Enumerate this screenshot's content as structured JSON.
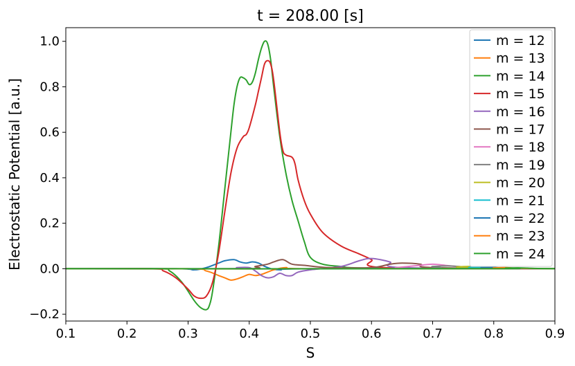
{
  "chart_data": {
    "type": "line",
    "title": "t = 208.00 [s]",
    "xlabel": "S",
    "ylabel": "Electrostatic Potential [a.u.]",
    "xlim": [
      0.1,
      0.9
    ],
    "ylim": [
      -0.23,
      1.06
    ],
    "xticks": [
      "0.1",
      "0.2",
      "0.3",
      "0.4",
      "0.5",
      "0.6",
      "0.7",
      "0.8",
      "0.9"
    ],
    "yticks": [
      "−0.2",
      "0.0",
      "0.2",
      "0.4",
      "0.6",
      "0.8",
      "1.0"
    ],
    "grid": false,
    "legend_position": "top-right",
    "series": [
      {
        "name": "m = 12",
        "color": "#1f77b4",
        "x": [
          0.1,
          0.28,
          0.31,
          0.33,
          0.35,
          0.36,
          0.375,
          0.385,
          0.395,
          0.405,
          0.415,
          0.43,
          0.45,
          0.5,
          0.9
        ],
        "y": [
          0,
          0,
          -0.005,
          0.005,
          0.025,
          0.035,
          0.04,
          0.03,
          0.025,
          0.03,
          0.025,
          0.005,
          -0.005,
          0,
          0
        ]
      },
      {
        "name": "m = 13",
        "color": "#ff7f0e",
        "x": [
          0.1,
          0.3,
          0.33,
          0.35,
          0.36,
          0.37,
          0.38,
          0.39,
          0.4,
          0.41,
          0.42,
          0.43,
          0.44,
          0.46,
          0.5,
          0.9
        ],
        "y": [
          0,
          0,
          -0.01,
          -0.03,
          -0.04,
          -0.05,
          -0.045,
          -0.035,
          -0.025,
          -0.03,
          -0.025,
          -0.015,
          -0.005,
          0.005,
          0,
          0
        ]
      },
      {
        "name": "m = 14",
        "color": "#2ca02c",
        "x": [
          0.1,
          0.25,
          0.27,
          0.29,
          0.31,
          0.32,
          0.33,
          0.335,
          0.34,
          0.35,
          0.36,
          0.37,
          0.375,
          0.38,
          0.385,
          0.39,
          0.395,
          0.4,
          0.405,
          0.41,
          0.415,
          0.42,
          0.425,
          0.43,
          0.435,
          0.44,
          0.45,
          0.46,
          0.47,
          0.48,
          0.49,
          0.5,
          0.52,
          0.55,
          0.6,
          0.9
        ],
        "y": [
          0,
          0,
          -0.01,
          -0.06,
          -0.14,
          -0.17,
          -0.18,
          -0.16,
          -0.1,
          0.1,
          0.35,
          0.6,
          0.72,
          0.8,
          0.84,
          0.84,
          0.83,
          0.81,
          0.82,
          0.86,
          0.92,
          0.97,
          1.0,
          0.99,
          0.92,
          0.8,
          0.58,
          0.42,
          0.3,
          0.21,
          0.12,
          0.05,
          0.02,
          0.01,
          0.003,
          0
        ]
      },
      {
        "name": "m = 15",
        "color": "#d62728",
        "x": [
          0.1,
          0.24,
          0.26,
          0.28,
          0.3,
          0.31,
          0.32,
          0.33,
          0.34,
          0.35,
          0.36,
          0.37,
          0.38,
          0.39,
          0.395,
          0.4,
          0.41,
          0.415,
          0.42,
          0.425,
          0.43,
          0.435,
          0.44,
          0.45,
          0.455,
          0.46,
          0.47,
          0.475,
          0.48,
          0.49,
          0.5,
          0.52,
          0.55,
          0.58,
          0.6,
          0.62,
          0.9
        ],
        "y": [
          0,
          0,
          -0.01,
          -0.04,
          -0.09,
          -0.12,
          -0.13,
          -0.12,
          -0.06,
          0.07,
          0.25,
          0.42,
          0.53,
          0.58,
          0.59,
          0.62,
          0.72,
          0.78,
          0.84,
          0.9,
          0.915,
          0.9,
          0.83,
          0.6,
          0.52,
          0.5,
          0.49,
          0.46,
          0.39,
          0.3,
          0.24,
          0.16,
          0.1,
          0.065,
          0.04,
          0.005,
          0
        ]
      },
      {
        "name": "m = 16",
        "color": "#9467bd",
        "x": [
          0.1,
          0.36,
          0.38,
          0.4,
          0.41,
          0.42,
          0.43,
          0.44,
          0.45,
          0.46,
          0.47,
          0.48,
          0.5,
          0.55,
          0.58,
          0.6,
          0.63,
          0.65,
          0.9
        ],
        "y": [
          0,
          0,
          0.005,
          0.005,
          -0.01,
          -0.03,
          -0.04,
          -0.035,
          -0.02,
          -0.03,
          -0.03,
          -0.015,
          -0.005,
          0.01,
          0.035,
          0.045,
          0.03,
          0.005,
          0
        ]
      },
      {
        "name": "m = 17",
        "color": "#8c564b",
        "x": [
          0.1,
          0.39,
          0.41,
          0.43,
          0.44,
          0.455,
          0.47,
          0.49,
          0.53,
          0.6,
          0.63,
          0.65,
          0.68,
          0.7,
          0.9
        ],
        "y": [
          0,
          0,
          0.01,
          0.02,
          0.03,
          0.04,
          0.02,
          0.015,
          0.005,
          0.005,
          0.02,
          0.025,
          0.02,
          0.005,
          0
        ]
      },
      {
        "name": "m = 18",
        "color": "#e377c2",
        "x": [
          0.1,
          0.6,
          0.64,
          0.66,
          0.68,
          0.7,
          0.72,
          0.74,
          0.78,
          0.9
        ],
        "y": [
          0,
          0,
          0.005,
          0.01,
          0.015,
          0.02,
          0.015,
          0.01,
          0.005,
          0
        ]
      },
      {
        "name": "m = 19",
        "color": "#7f7f7f",
        "x": [
          0.1,
          0.66,
          0.7,
          0.73,
          0.75,
          0.78,
          0.9
        ],
        "y": [
          0,
          0,
          0.01,
          0.012,
          0.008,
          0.003,
          0
        ]
      },
      {
        "name": "m = 20",
        "color": "#bcbd22",
        "x": [
          0.1,
          0.7,
          0.74,
          0.76,
          0.78,
          0.9
        ],
        "y": [
          0,
          0,
          0.008,
          0.01,
          0.005,
          0
        ]
      },
      {
        "name": "m = 21",
        "color": "#17becf",
        "x": [
          0.1,
          0.72,
          0.76,
          0.78,
          0.8,
          0.9
        ],
        "y": [
          0,
          0,
          0.006,
          0.008,
          0.004,
          0
        ]
      },
      {
        "name": "m = 22",
        "color": "#1f77b4",
        "x": [
          0.1,
          0.74,
          0.78,
          0.8,
          0.82,
          0.9
        ],
        "y": [
          0,
          0,
          0.005,
          0.006,
          0.003,
          0
        ]
      },
      {
        "name": "m = 23",
        "color": "#ff7f0e",
        "x": [
          0.1,
          0.76,
          0.8,
          0.82,
          0.84,
          0.9
        ],
        "y": [
          0,
          0,
          0.004,
          0.005,
          0.002,
          0
        ]
      },
      {
        "name": "m = 24",
        "color": "#2ca02c",
        "x": [
          0.1,
          0.78,
          0.82,
          0.84,
          0.86,
          0.9
        ],
        "y": [
          0,
          0,
          0.003,
          0.004,
          0.002,
          0
        ]
      }
    ]
  }
}
